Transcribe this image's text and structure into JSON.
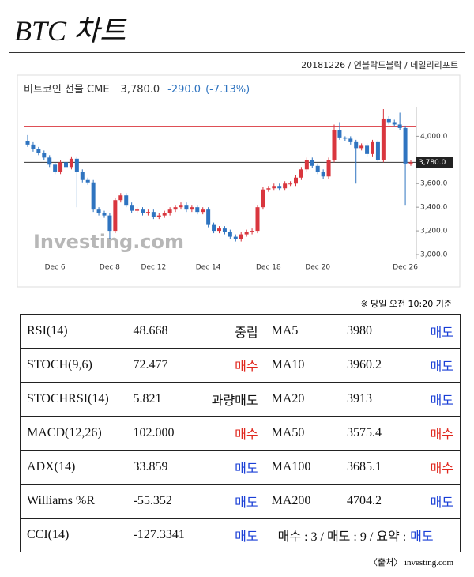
{
  "header": {
    "title": "BTC 차트",
    "byline": "20181226 / 언블락드블락 / 데일리리포트"
  },
  "chart_data": {
    "type": "candlestick",
    "title": "비트코인 선물 CME",
    "last": {
      "value": 3780,
      "label": "3,780.0"
    },
    "change": {
      "value": -290,
      "label": "-290.0"
    },
    "change_pct": {
      "value": -7.13,
      "label": "(-7.13%)"
    },
    "watermark": "Investing.com",
    "up_color": "#d9363e",
    "down_color": "#2f74c0",
    "reference_line": {
      "value": 4080,
      "color": "#d9363e"
    },
    "ylim": [
      2960,
      4250
    ],
    "yticks": [
      {
        "value": 3000,
        "label": "3,000.0"
      },
      {
        "value": 3200,
        "label": "3,200.0"
      },
      {
        "value": 3400,
        "label": "3,400.0"
      },
      {
        "value": 3600,
        "label": "3,600.0"
      },
      {
        "value": 3800,
        "label": "3,800.0"
      },
      {
        "value": 4000,
        "label": "4,000.0"
      }
    ],
    "categories": [
      null,
      null,
      null,
      null,
      null,
      "Dec 6",
      null,
      null,
      null,
      null,
      null,
      null,
      null,
      null,
      null,
      "Dec 8",
      null,
      null,
      null,
      null,
      null,
      null,
      null,
      "Dec 12",
      null,
      null,
      null,
      null,
      null,
      null,
      null,
      null,
      null,
      "Dec 14",
      null,
      null,
      null,
      null,
      null,
      null,
      null,
      null,
      null,
      null,
      "Dec 18",
      null,
      null,
      null,
      null,
      null,
      null,
      null,
      null,
      "Dec 20",
      null,
      null,
      null,
      null,
      null,
      null,
      null,
      null,
      null,
      null,
      null,
      null,
      null,
      null,
      null,
      "Dec 26",
      null
    ],
    "open": [
      3960,
      3930,
      3890,
      3860,
      3820,
      3760,
      3700,
      3780,
      3740,
      3810,
      3700,
      3630,
      3610,
      3380,
      3350,
      3330,
      3200,
      3460,
      3500,
      3420,
      3370,
      3380,
      3350,
      3360,
      3320,
      3330,
      3350,
      3380,
      3400,
      3420,
      3380,
      3400,
      3360,
      3380,
      3250,
      3200,
      3220,
      3190,
      3150,
      3130,
      3170,
      3190,
      3200,
      3400,
      3550,
      3560,
      3580,
      3560,
      3600,
      3600,
      3650,
      3720,
      3800,
      3750,
      3700,
      3660,
      3800,
      4050,
      3990,
      3980,
      3950,
      3900,
      3920,
      3850,
      3950,
      3800,
      4150,
      4120,
      4100,
      4070,
      3770
    ],
    "high": [
      4010,
      3950,
      3910,
      3880,
      3840,
      3780,
      3800,
      3800,
      3830,
      3830,
      3720,
      3650,
      3630,
      3400,
      3370,
      3350,
      3480,
      3520,
      3520,
      3440,
      3400,
      3400,
      3380,
      3380,
      3350,
      3370,
      3400,
      3420,
      3440,
      3440,
      3420,
      3420,
      3400,
      3400,
      3270,
      3240,
      3240,
      3210,
      3170,
      3190,
      3210,
      3220,
      3420,
      3570,
      3580,
      3600,
      3600,
      3620,
      3620,
      3670,
      3740,
      3820,
      3820,
      3770,
      3720,
      3820,
      4100,
      4120,
      4000,
      4000,
      3970,
      3940,
      3940,
      3970,
      3970,
      4230,
      4170,
      4140,
      4200,
      4090,
      3800
    ],
    "low": [
      3910,
      3870,
      3840,
      3800,
      3740,
      3680,
      3680,
      3720,
      3720,
      3400,
      3610,
      3590,
      3360,
      3330,
      3310,
      3130,
      3180,
      3440,
      3400,
      3350,
      3350,
      3330,
      3330,
      3300,
      3300,
      3310,
      3330,
      3360,
      3380,
      3360,
      3360,
      3340,
      3340,
      3230,
      3180,
      3180,
      3170,
      3130,
      3110,
      3110,
      3150,
      3170,
      3180,
      3380,
      3530,
      3540,
      3540,
      3540,
      3580,
      3580,
      3630,
      3700,
      3730,
      3680,
      3640,
      3640,
      3780,
      3970,
      3960,
      3930,
      3600,
      3880,
      3830,
      3830,
      3780,
      3780,
      4100,
      4080,
      4050,
      3420,
      3750
    ],
    "close": [
      3930,
      3890,
      3860,
      3820,
      3760,
      3700,
      3780,
      3740,
      3810,
      3700,
      3630,
      3610,
      3380,
      3350,
      3330,
      3200,
      3460,
      3500,
      3420,
      3370,
      3380,
      3350,
      3360,
      3320,
      3330,
      3350,
      3380,
      3400,
      3420,
      3380,
      3400,
      3360,
      3380,
      3250,
      3200,
      3220,
      3190,
      3150,
      3130,
      3170,
      3190,
      3200,
      3400,
      3550,
      3560,
      3580,
      3560,
      3600,
      3600,
      3650,
      3720,
      3800,
      3750,
      3700,
      3660,
      3800,
      4050,
      3990,
      3980,
      3950,
      3900,
      3920,
      3850,
      3950,
      3800,
      4150,
      4120,
      4100,
      4070,
      3770,
      3780
    ]
  },
  "note": "※ 당일 오전 10:20 기준",
  "table": {
    "rows": [
      {
        "name": "RSI(14)",
        "value": "48.668",
        "signal": "중립",
        "signal_color": "#111",
        "ma": "MA5",
        "ma_value": "3980",
        "ma_signal": "매도",
        "ma_signal_color": "#1a3fd6"
      },
      {
        "name": "STOCH(9,6)",
        "value": "72.477",
        "signal": "매수",
        "signal_color": "#e0271d",
        "ma": "MA10",
        "ma_value": "3960.2",
        "ma_signal": "매도",
        "ma_signal_color": "#1a3fd6"
      },
      {
        "name": "STOCHRSI(14)",
        "value": "5.821",
        "signal": "과량매도",
        "signal_color": "#111",
        "ma": "MA20",
        "ma_value": "3913",
        "ma_signal": "매도",
        "ma_signal_color": "#1a3fd6"
      },
      {
        "name": "MACD(12,26)",
        "value": "102.000",
        "signal": "매수",
        "signal_color": "#e0271d",
        "ma": "MA50",
        "ma_value": "3575.4",
        "ma_signal": "매수",
        "ma_signal_color": "#e0271d"
      },
      {
        "name": "ADX(14)",
        "value": "33.859",
        "signal": "매도",
        "signal_color": "#1a3fd6",
        "ma": "MA100",
        "ma_value": "3685.1",
        "ma_signal": "매수",
        "ma_signal_color": "#e0271d"
      },
      {
        "name": "Williams %R",
        "value": "-55.352",
        "signal": "매도",
        "signal_color": "#1a3fd6",
        "ma": "MA200",
        "ma_value": "4704.2",
        "ma_signal": "매도",
        "ma_signal_color": "#1a3fd6"
      },
      {
        "name": "CCI(14)",
        "value": "-127.3341",
        "signal": "매도",
        "signal_color": "#1a3fd6"
      }
    ],
    "summary": {
      "text": "매수 : 3 / 매도 : 9 / 요약 :",
      "verdict": "매도",
      "verdict_color": "#1a3fd6"
    }
  },
  "source": "〈출처〉 investing.com"
}
